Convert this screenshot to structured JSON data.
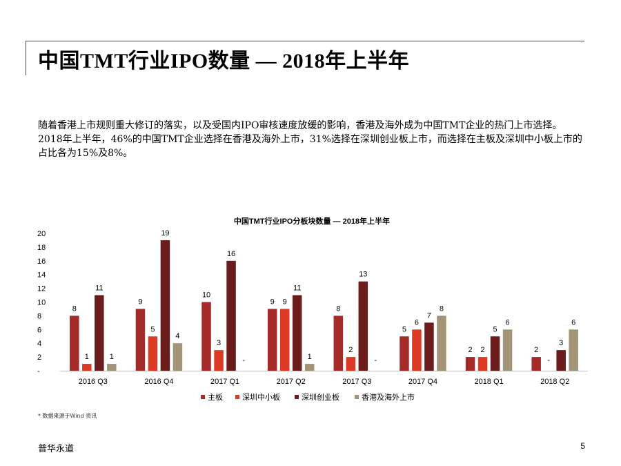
{
  "page": {
    "title": "中国TMT行业IPO数量 — 2018年上半年",
    "body_paragraphs": [
      "随着香港上市规则重大修订的落实，以及受国内IPO审核速度放缓的影响，香港及海外成为中国TMT企业的热门上市选择。",
      "2018年上半年，46%的中国TMT企业选择在香港及海外上市，31%选择在深圳创业板上市，而选择在主板及深圳中小板上市的占比各为15%及8%。"
    ],
    "footnote": "* 数据来源于Wind 资讯",
    "brand": "普华永道",
    "page_number": "5"
  },
  "chart_data": {
    "type": "bar",
    "title": "中国TMT行业IPO分板块数量 — 2018年上半年",
    "categories": [
      "2016 Q3",
      "2016 Q4",
      "2017 Q1",
      "2017 Q2",
      "2017 Q3",
      "2017 Q4",
      "2018 Q1",
      "2018 Q2"
    ],
    "series": [
      {
        "name": "主板",
        "color": "#a52a2a",
        "values": [
          8,
          9,
          10,
          9,
          8,
          5,
          2,
          2
        ]
      },
      {
        "name": "深圳中小板",
        "color": "#dd3a25",
        "values": [
          1,
          5,
          3,
          9,
          2,
          6,
          2,
          null
        ]
      },
      {
        "name": "深圳创业板",
        "color": "#6b1c1c",
        "values": [
          11,
          19,
          16,
          11,
          13,
          7,
          5,
          3
        ]
      },
      {
        "name": "香港及海外上市",
        "color": "#a39478",
        "values": [
          1,
          4,
          null,
          1,
          null,
          8,
          6,
          6
        ]
      }
    ],
    "yticks": [
      "-",
      "2",
      "4",
      "6",
      "8",
      "10",
      "12",
      "14",
      "16",
      "18",
      "20"
    ],
    "ylim": [
      0,
      20
    ],
    "missing_label": "-",
    "legend_position": "bottom",
    "grid": false
  }
}
